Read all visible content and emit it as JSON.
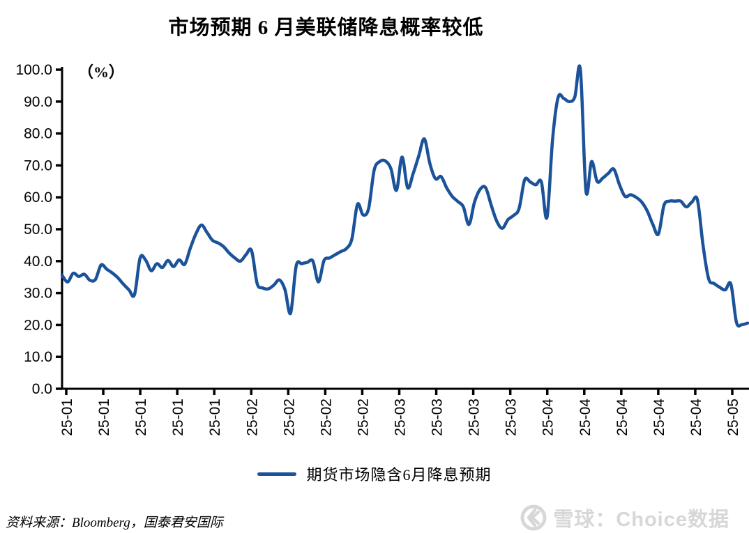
{
  "page": {
    "title": "市场预期 6 月美联储降息概率较低",
    "unit_label": "（%）",
    "legend": {
      "series_label": "期货市场隐含6月降息预期"
    },
    "source": "资料来源：Bloomberg，国泰君安国际",
    "watermark": {
      "logo": "xueqiu-logo",
      "text": "雪球：Choice数据",
      "color": "#d7d7d7"
    }
  },
  "chart_data": {
    "type": "line",
    "title": "市场预期 6 月美联储降息概率较低",
    "ylabel": "（%）",
    "ylim": [
      0,
      100
    ],
    "grid": false,
    "legend_position": "bottom",
    "line_color": "#1B5299",
    "axis_color": "#000000",
    "y_tick_labels": [
      "0.0",
      "10.0",
      "20.0",
      "30.0",
      "40.0",
      "50.0",
      "60.0",
      "70.0",
      "80.0",
      "90.0",
      "100.0"
    ],
    "x_tick_labels": [
      "25-01",
      "25-01",
      "25-01",
      "25-01",
      "25-01",
      "25-02",
      "25-02",
      "25-02",
      "25-02",
      "25-03",
      "25-03",
      "25-03",
      "25-03",
      "25-04",
      "25-04",
      "25-04",
      "25-04",
      "25-04",
      "25-05"
    ],
    "series": [
      {
        "name": "期货市场隐含6月降息预期",
        "color": "#1B5299",
        "values": [
          35.6,
          33.5,
          36.2,
          35.2,
          35.9,
          34.0,
          34.3,
          38.8,
          37.5,
          36.3,
          34.8,
          32.8,
          31.0,
          29.5,
          41.0,
          40.3,
          37.0,
          39.2,
          38.0,
          40.2,
          38.3,
          40.4,
          39.0,
          44.0,
          48.5,
          51.3,
          49.0,
          46.5,
          45.7,
          44.5,
          42.5,
          41.0,
          40.0,
          42.0,
          43.3,
          33.0,
          31.6,
          31.3,
          32.5,
          34.1,
          31.0,
          23.7,
          38.5,
          39.2,
          39.6,
          40.0,
          33.5,
          40.2,
          41.0,
          42.0,
          43.0,
          43.9,
          47.0,
          57.8,
          54.5,
          56.5,
          68.5,
          71.2,
          71.4,
          69.0,
          62.2,
          72.6,
          63.0,
          67.5,
          73.0,
          78.3,
          70.5,
          65.8,
          66.5,
          63.0,
          60.3,
          58.7,
          57.0,
          51.5,
          58.5,
          62.5,
          63.0,
          57.5,
          52.5,
          50.3,
          53.0,
          54.3,
          56.5,
          65.5,
          64.8,
          63.9,
          64.8,
          53.7,
          78.0,
          91.3,
          91.0,
          90.0,
          91.5,
          100.0,
          62.0,
          71.2,
          65.0,
          66.0,
          67.5,
          68.8,
          64.0,
          60.3,
          60.8,
          60.0,
          58.5,
          55.7,
          51.5,
          48.5,
          57.5,
          58.8,
          58.8,
          58.8,
          57.0,
          58.5,
          59.2,
          45.0,
          34.5,
          33.0,
          31.8,
          31.0,
          32.8,
          20.8,
          20.1,
          20.6
        ]
      }
    ]
  }
}
